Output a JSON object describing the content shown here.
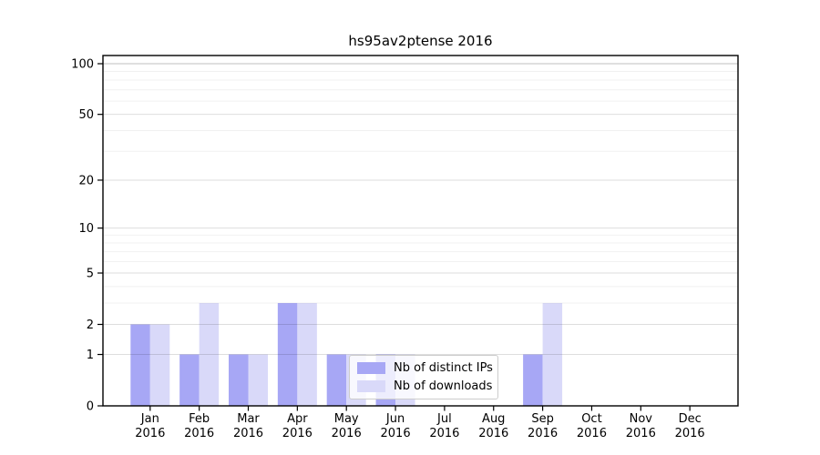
{
  "page": {
    "background": "#ffffff"
  },
  "chart_data": {
    "type": "bar",
    "title": "hs95av2ptense 2016",
    "categories": [
      {
        "month": "Jan",
        "year": "2016"
      },
      {
        "month": "Feb",
        "year": "2016"
      },
      {
        "month": "Mar",
        "year": "2016"
      },
      {
        "month": "Apr",
        "year": "2016"
      },
      {
        "month": "May",
        "year": "2016"
      },
      {
        "month": "Jun",
        "year": "2016"
      },
      {
        "month": "Jul",
        "year": "2016"
      },
      {
        "month": "Aug",
        "year": "2016"
      },
      {
        "month": "Sep",
        "year": "2016"
      },
      {
        "month": "Oct",
        "year": "2016"
      },
      {
        "month": "Nov",
        "year": "2016"
      },
      {
        "month": "Dec",
        "year": "2016"
      }
    ],
    "series": [
      {
        "name": "Nb of distinct IPs",
        "color": "#a7a7f5",
        "values": [
          2,
          1,
          1,
          3,
          1,
          1,
          0,
          0,
          1,
          0,
          0,
          0
        ]
      },
      {
        "name": "Nb of downloads",
        "color": "#d9d9f9",
        "values": [
          2,
          3,
          1,
          3,
          1,
          1,
          0,
          0,
          3,
          0,
          0,
          0
        ]
      }
    ],
    "y_axis": {
      "scale": "log1p",
      "range": [
        0,
        100
      ],
      "major_ticks": [
        0,
        1,
        2,
        5,
        10,
        20,
        50,
        100
      ],
      "minor_ticks": [
        3,
        4,
        6,
        7,
        8,
        9,
        30,
        40,
        60,
        70,
        80,
        90
      ],
      "grid": true
    },
    "x_axis": {
      "year_line": "2016"
    },
    "legend": {
      "position": "lower center"
    }
  }
}
